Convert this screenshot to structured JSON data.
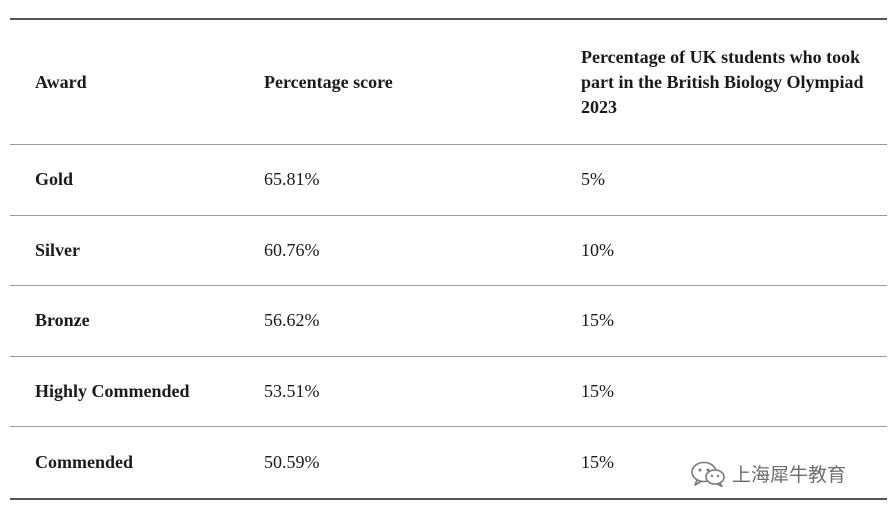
{
  "table": {
    "headers": {
      "award": "Award",
      "score": "Percentage score",
      "percentage": "Percentage of UK students who took part in the British Biology Olympiad 2023"
    },
    "rows": [
      {
        "award": "Gold",
        "score": "65.81%",
        "percentage": "5%"
      },
      {
        "award": "Silver",
        "score": "60.76%",
        "percentage": "10%"
      },
      {
        "award": "Bronze",
        "score": "56.62%",
        "percentage": "15%"
      },
      {
        "award": "Highly Commended",
        "score": "53.51%",
        "percentage": "15%"
      },
      {
        "award": "Commended",
        "score": "50.59%",
        "percentage": "15%"
      }
    ]
  },
  "watermark": {
    "icon": "wechat-icon",
    "text": "上海犀牛教育"
  }
}
